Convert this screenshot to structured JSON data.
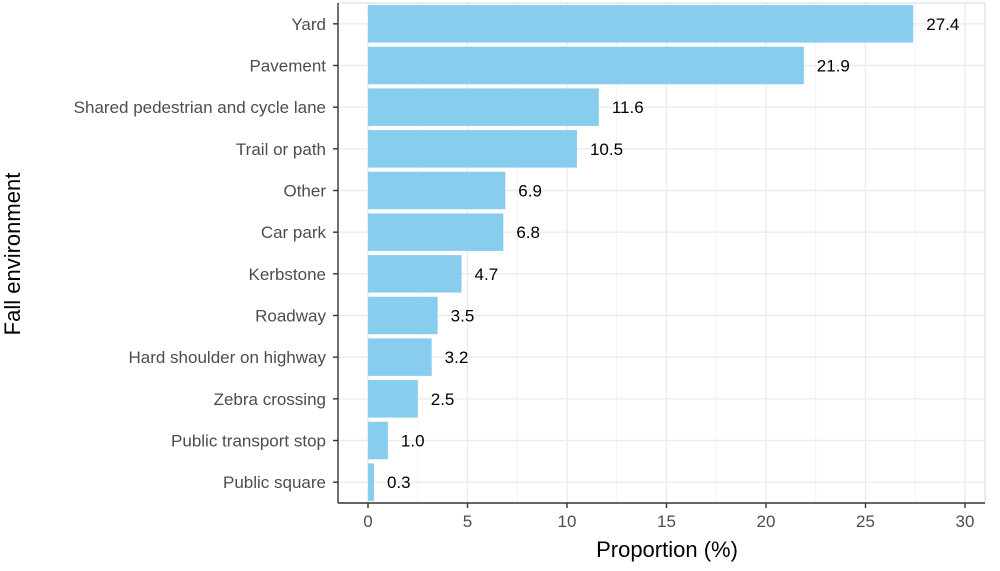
{
  "chart_data": {
    "type": "bar",
    "orientation": "horizontal",
    "title": "",
    "xlabel": "Proportion (%)",
    "ylabel": "Fall environment",
    "categories": [
      "Yard",
      "Pavement",
      "Shared pedestrian and cycle lane",
      "Trail or path",
      "Other",
      "Car park",
      "Kerbstone",
      "Roadway",
      "Hard shoulder on highway",
      "Zebra crossing",
      "Public transport stop",
      "Public square"
    ],
    "values": [
      27.4,
      21.9,
      11.6,
      10.5,
      6.9,
      6.8,
      4.7,
      3.5,
      3.2,
      2.5,
      1.0,
      0.3
    ],
    "data_labels": [
      "27.4",
      "21.9",
      "11.6",
      "10.5",
      "6.9",
      "6.8",
      "4.7",
      "3.5",
      "3.2",
      "2.5",
      "1.0",
      "0.3"
    ],
    "xlim": [
      -1.5,
      31
    ],
    "xticks": [
      0,
      5,
      10,
      15,
      20,
      25,
      30
    ],
    "xtick_labels": [
      "0",
      "5",
      "10",
      "15",
      "20",
      "25",
      "30"
    ],
    "grid": true,
    "bar_color": "#89CDEE"
  }
}
